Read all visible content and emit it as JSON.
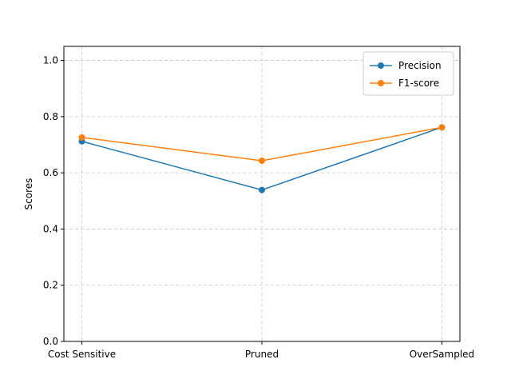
{
  "chart_data": {
    "type": "line",
    "title": "",
    "xlabel": "",
    "ylabel": "Scores",
    "categories": [
      "Cost Sensitive",
      "Pruned",
      "OverSampled"
    ],
    "ylim": [
      0,
      1.05
    ],
    "yticks": [
      0.0,
      0.2,
      0.4,
      0.6,
      0.8,
      1.0
    ],
    "ytick_labels": [
      "0.0",
      "0.2",
      "0.4",
      "0.6",
      "0.8",
      "1.0"
    ],
    "grid": true,
    "grid_style": "dashed",
    "legend_position": "top-right",
    "series": [
      {
        "name": "Precision",
        "values": [
          0.712,
          0.539,
          0.762
        ],
        "color": "#1f77b4",
        "marker": "circle"
      },
      {
        "name": "F1-score",
        "values": [
          0.726,
          0.643,
          0.762
        ],
        "color": "#ff7f0e",
        "marker": "circle"
      }
    ]
  }
}
